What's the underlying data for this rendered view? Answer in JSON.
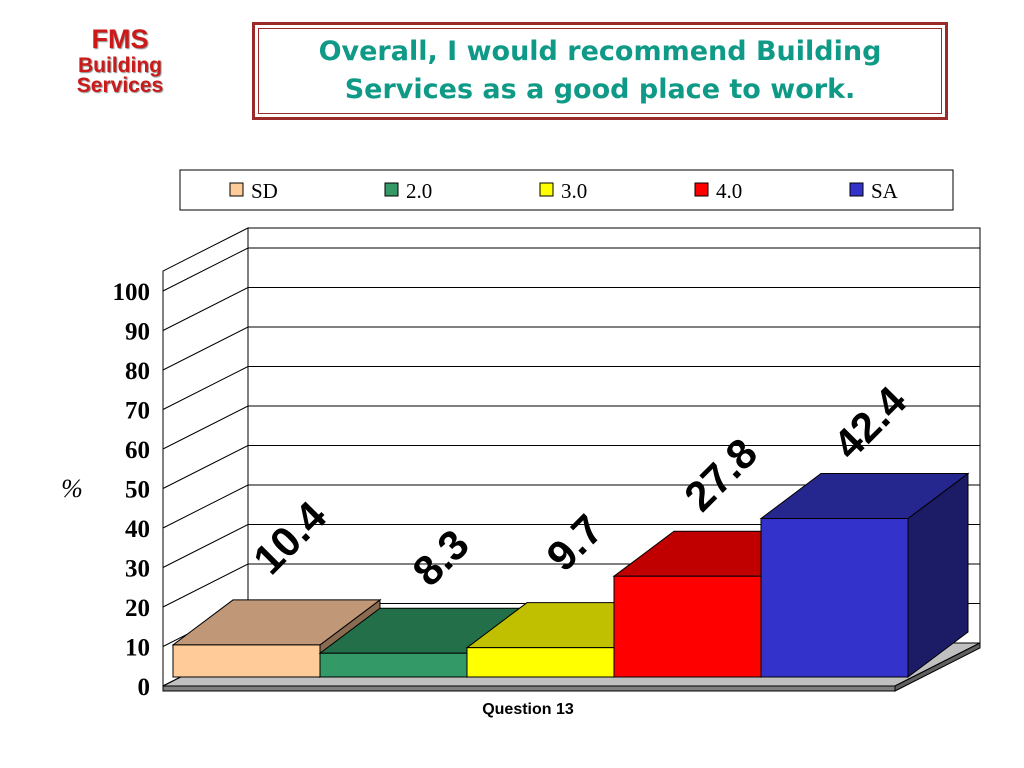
{
  "logo": {
    "line1": "FMS",
    "line2": "Building",
    "line3": "Services"
  },
  "title": "Overall, I would recommend Building Services as a good place to work.",
  "chart_data": {
    "type": "bar",
    "categories": [
      "Question 13"
    ],
    "series": [
      {
        "name": "SD",
        "values": [
          10.4
        ],
        "color": "#ffcc99",
        "top": "#c09878",
        "side": "#8a6a50"
      },
      {
        "name": "2.0",
        "values": [
          8.3
        ],
        "color": "#339966",
        "top": "#236f49",
        "side": "#1c5a3a"
      },
      {
        "name": "3.0",
        "values": [
          9.7
        ],
        "color": "#ffff00",
        "top": "#c0c000",
        "side": "#9a9a00"
      },
      {
        "name": "4.0",
        "values": [
          27.8
        ],
        "color": "#ff0000",
        "top": "#c00000",
        "side": "#8e0000"
      },
      {
        "name": "SA",
        "values": [
          42.4
        ],
        "color": "#3333cc",
        "top": "#26268f",
        "side": "#1c1c66"
      }
    ],
    "data_labels": [
      "10.4",
      "8.3",
      "9.7",
      "27.8",
      "42.4"
    ],
    "ylabel": "%",
    "xlabel": "Question 13",
    "ylim": [
      0,
      100
    ],
    "yticks": [
      0,
      10,
      20,
      30,
      40,
      50,
      60,
      70,
      80,
      90,
      100
    ],
    "grid": true,
    "legend_position": "top"
  }
}
